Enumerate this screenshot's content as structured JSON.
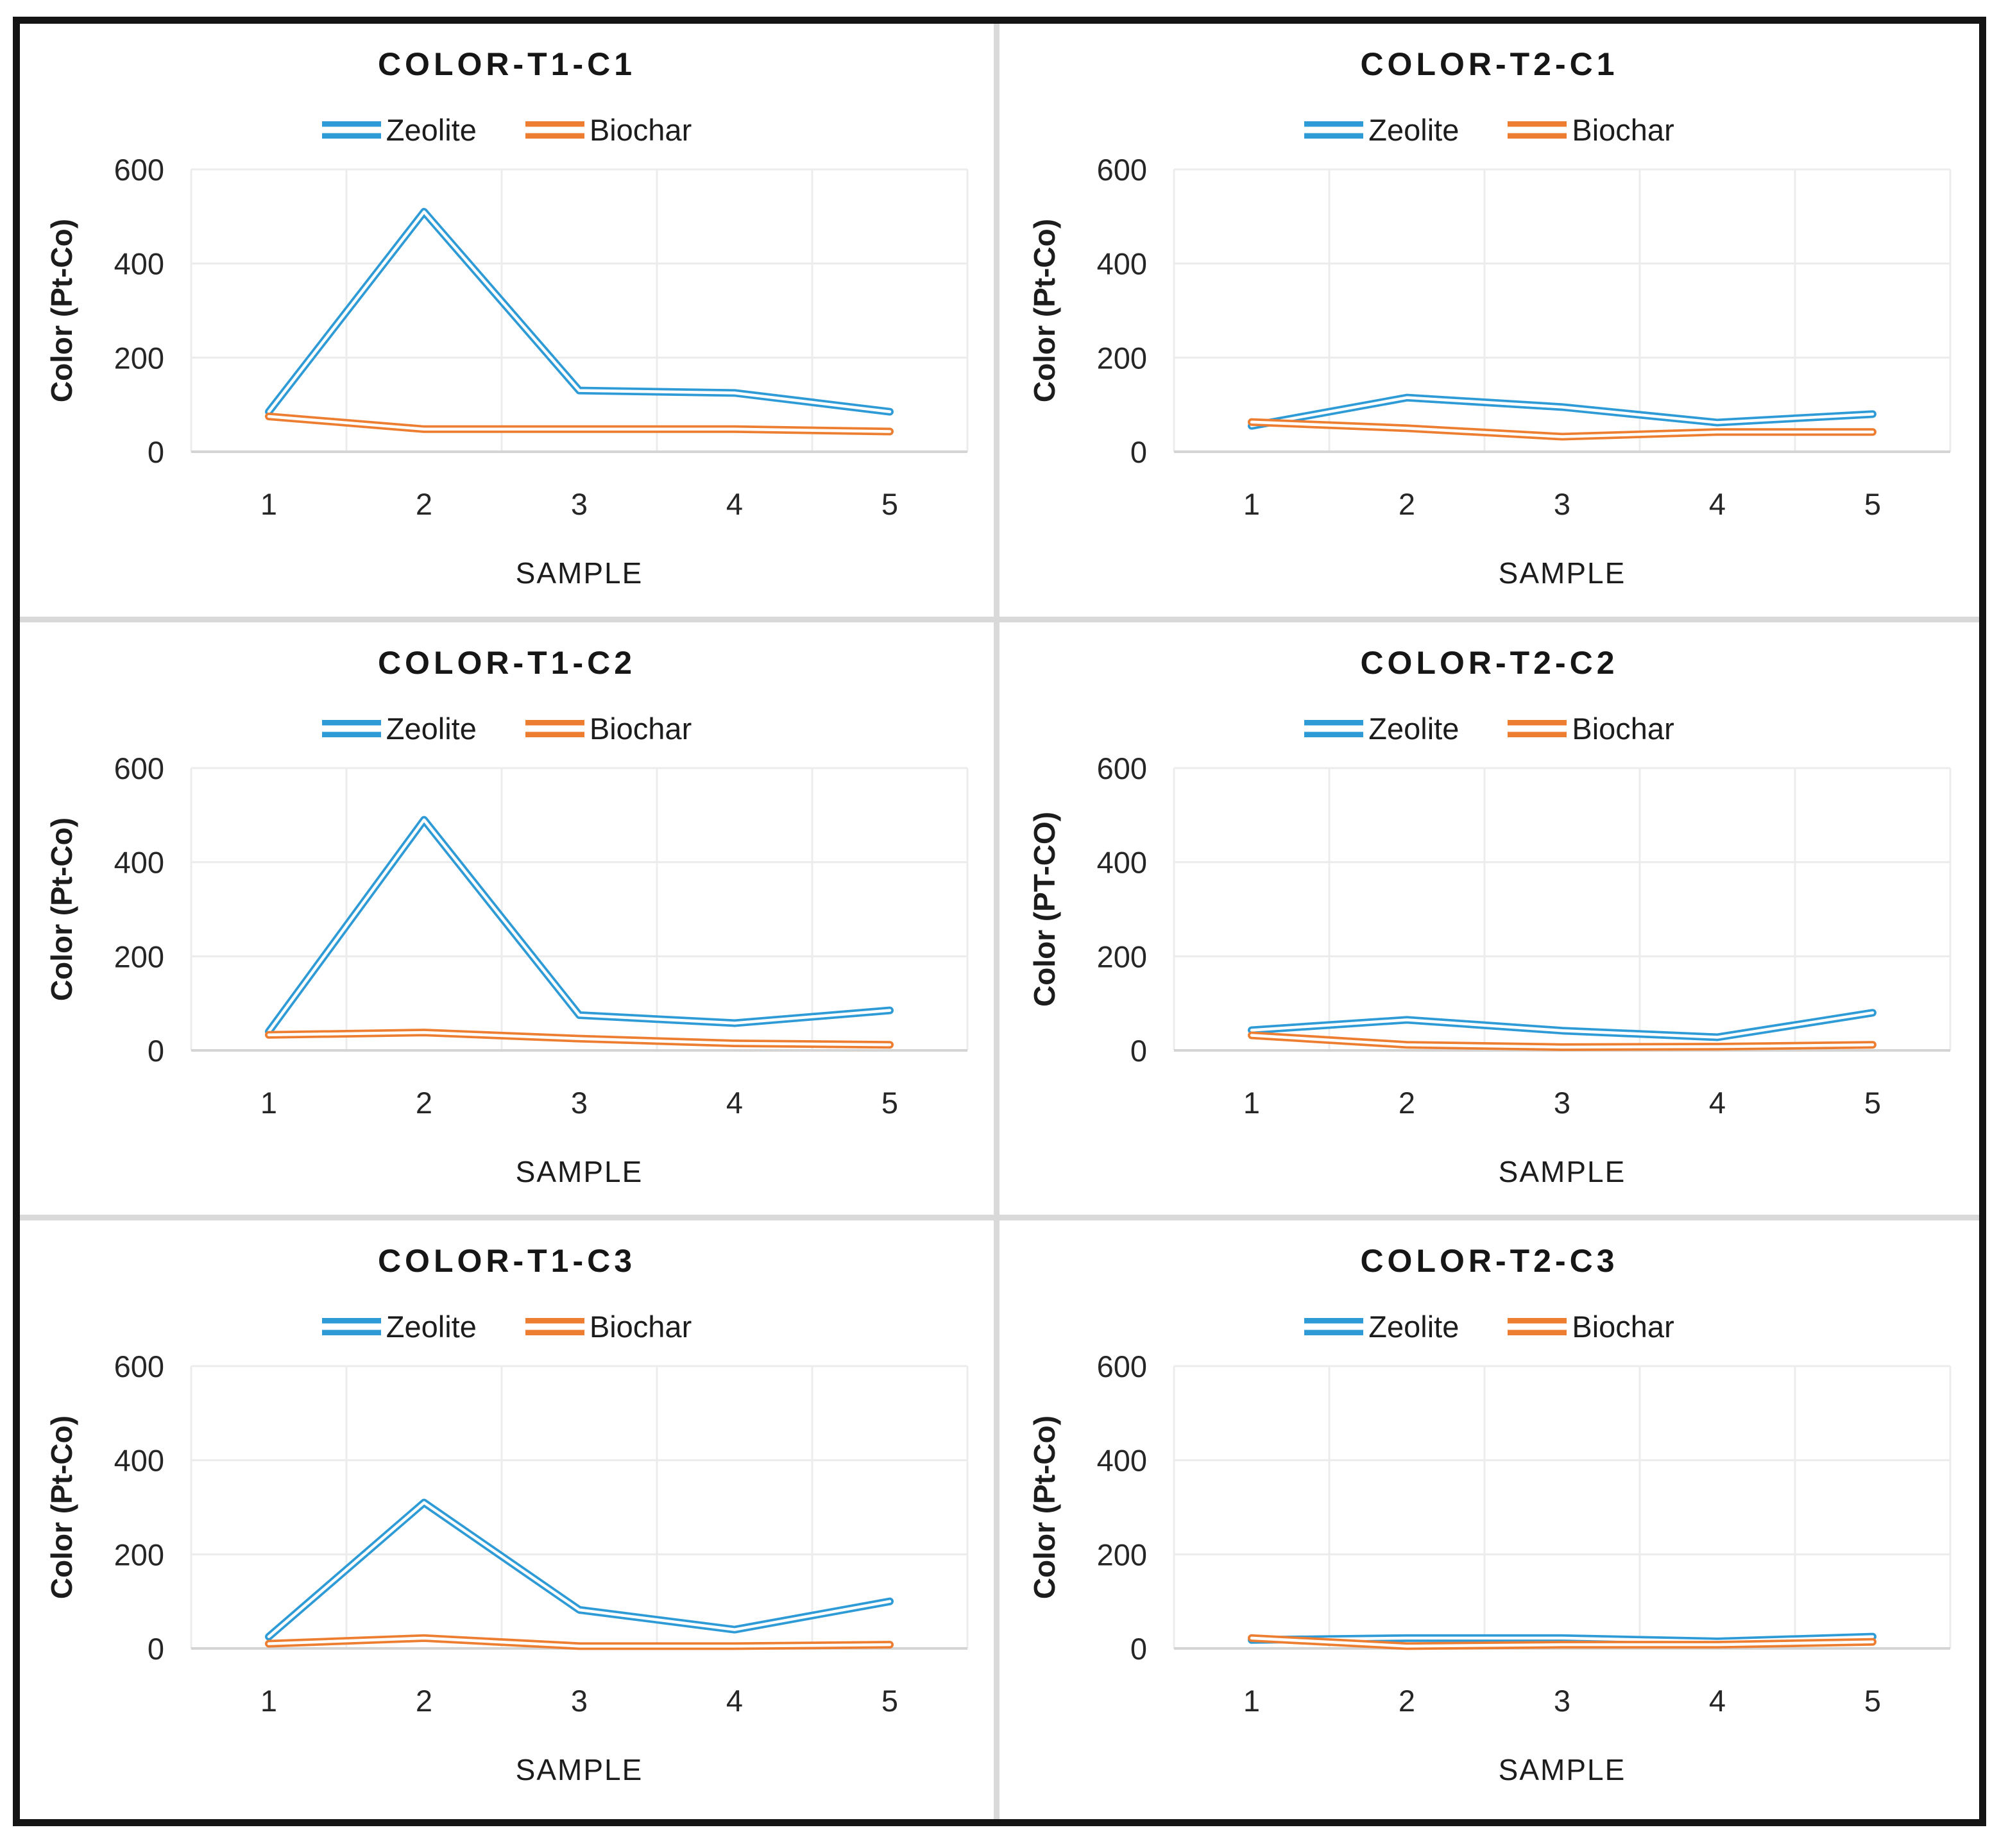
{
  "page": {
    "background": "#ffffff",
    "border_color": "#141414",
    "divider_color": "#d9d9d9",
    "gridline_color": "#ececec",
    "axisline_color": "#d4d4d4",
    "title_color": "#161616",
    "text_color": "#262626"
  },
  "legend": {
    "items": [
      {
        "label": "Zeolite",
        "color": "#2e9bd6"
      },
      {
        "label": "Biochar",
        "color": "#ed7d31"
      }
    ]
  },
  "axes": {
    "y_tick_labels": [
      "0",
      "200",
      "400",
      "600"
    ],
    "y_tick_values": [
      0,
      200,
      400,
      600
    ],
    "x_ticks": [
      "1",
      "2",
      "3",
      "4",
      "5"
    ],
    "x_label": "SAMPLE",
    "ylim": [
      0,
      600
    ],
    "grid": "on",
    "legend_position": "top"
  },
  "chart_data": [
    {
      "type": "line",
      "title": "COLOR-T1-C1",
      "xlabel": "SAMPLE",
      "ylabel": "Color (Pt-Co)",
      "x": [
        1,
        2,
        3,
        4,
        5
      ],
      "ylim": [
        0,
        600
      ],
      "series": [
        {
          "name": "Zeolite",
          "color": "#2e9bd6",
          "values": [
            85,
            510,
            130,
            125,
            85
          ]
        },
        {
          "name": "Biochar",
          "color": "#ed7d31",
          "values": [
            75,
            48,
            48,
            48,
            43
          ]
        }
      ]
    },
    {
      "type": "line",
      "title": "COLOR-T2-C1",
      "xlabel": "SAMPLE",
      "ylabel": "Color (Pt-Co)",
      "x": [
        1,
        2,
        3,
        4,
        5
      ],
      "ylim": [
        0,
        600
      ],
      "series": [
        {
          "name": "Zeolite",
          "color": "#2e9bd6",
          "values": [
            55,
            115,
            95,
            62,
            80
          ]
        },
        {
          "name": "Biochar",
          "color": "#ed7d31",
          "values": [
            63,
            50,
            32,
            42,
            42
          ]
        }
      ]
    },
    {
      "type": "line",
      "title": "COLOR-T1-C2",
      "xlabel": "SAMPLE",
      "ylabel": "Color (Pt-Co)",
      "x": [
        1,
        2,
        3,
        4,
        5
      ],
      "ylim": [
        0,
        600
      ],
      "series": [
        {
          "name": "Zeolite",
          "color": "#2e9bd6",
          "values": [
            40,
            490,
            75,
            58,
            85
          ]
        },
        {
          "name": "Biochar",
          "color": "#ed7d31",
          "values": [
            33,
            38,
            25,
            15,
            12
          ]
        }
      ]
    },
    {
      "type": "line",
      "title": "COLOR-T2-C2",
      "xlabel": "SAMPLE",
      "ylabel": "Color (PT-CO)",
      "x": [
        1,
        2,
        3,
        4,
        5
      ],
      "ylim": [
        0,
        600
      ],
      "series": [
        {
          "name": "Zeolite",
          "color": "#2e9bd6",
          "values": [
            43,
            65,
            42,
            28,
            80
          ]
        },
        {
          "name": "Biochar",
          "color": "#ed7d31",
          "values": [
            32,
            12,
            7,
            8,
            12
          ]
        }
      ]
    },
    {
      "type": "line",
      "title": "COLOR-T1-C3",
      "xlabel": "SAMPLE",
      "ylabel": "Color (Pt-Co)",
      "x": [
        1,
        2,
        3,
        4,
        5
      ],
      "ylim": [
        0,
        600
      ],
      "series": [
        {
          "name": "Zeolite",
          "color": "#2e9bd6",
          "values": [
            25,
            310,
            82,
            40,
            100
          ]
        },
        {
          "name": "Biochar",
          "color": "#ed7d31",
          "values": [
            10,
            22,
            5,
            5,
            8
          ]
        }
      ]
    },
    {
      "type": "line",
      "title": "COLOR-T2-C3",
      "xlabel": "SAMPLE",
      "ylabel": "Color (Pt-Co)",
      "x": [
        1,
        2,
        3,
        4,
        5
      ],
      "ylim": [
        0,
        600
      ],
      "series": [
        {
          "name": "Zeolite",
          "color": "#2e9bd6",
          "values": [
            18,
            22,
            22,
            15,
            25
          ]
        },
        {
          "name": "Biochar",
          "color": "#ed7d31",
          "values": [
            22,
            5,
            8,
            8,
            14
          ]
        }
      ]
    }
  ]
}
